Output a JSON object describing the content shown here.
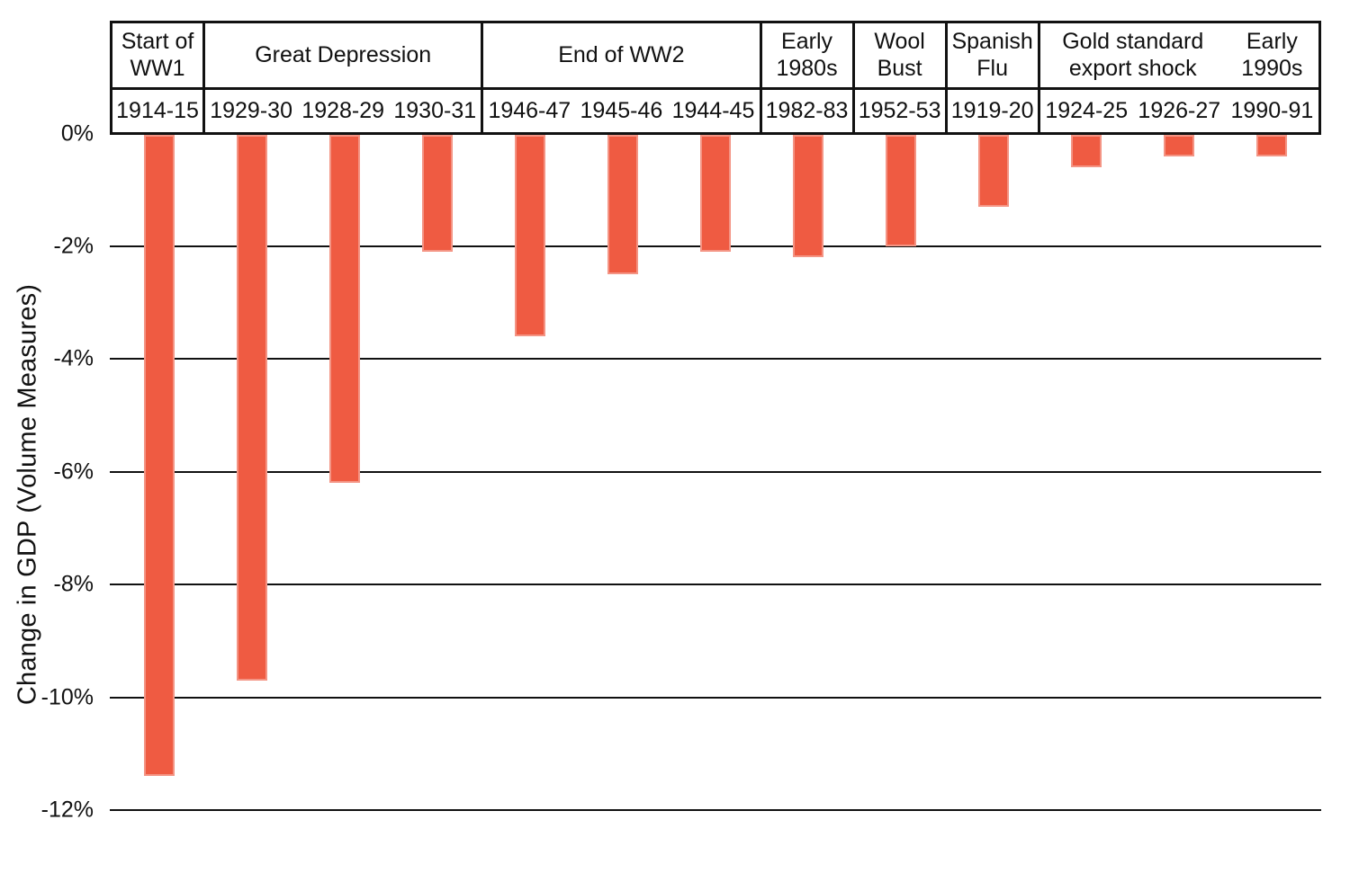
{
  "chart_data": {
    "type": "bar",
    "title": "",
    "xlabel": "",
    "ylabel": "Change in GDP (Volume Measures)",
    "unit": "%",
    "ylim": [
      -12,
      0
    ],
    "yticks": [
      0,
      -2,
      -4,
      -6,
      -8,
      -10,
      -12
    ],
    "ytick_labels": [
      "0%",
      "-2%",
      "-4%",
      "-6%",
      "-8%",
      "-10%",
      "-12%"
    ],
    "grid": true,
    "legend": false,
    "bar_color": "#EF5B42",
    "line_color": "#111111",
    "text_color": "#111111",
    "background_color": "#FFFFFF",
    "categories": [
      "1914-15",
      "1929-30",
      "1928-29",
      "1930-31",
      "1946-47",
      "1945-46",
      "1944-45",
      "1982-83",
      "1952-53",
      "1919-20",
      "1924-25",
      "1926-27",
      "1990-91"
    ],
    "values": [
      -11.4,
      -9.7,
      -6.2,
      -2.1,
      -3.6,
      -2.5,
      -2.1,
      -2.2,
      -2.0,
      -1.3,
      -0.6,
      -0.4,
      -0.4
    ]
  },
  "header": {
    "sections": [
      {
        "span": 1,
        "labels": [
          "Start of WW1"
        ],
        "label_spans": [
          1
        ]
      },
      {
        "span": 3,
        "labels": [
          "Great Depression"
        ],
        "label_spans": [
          3
        ]
      },
      {
        "span": 3,
        "labels": [
          "End of WW2"
        ],
        "label_spans": [
          3
        ]
      },
      {
        "span": 1,
        "labels": [
          "Early 1980s"
        ],
        "label_spans": [
          1
        ]
      },
      {
        "span": 1,
        "labels": [
          "Wool Bust"
        ],
        "label_spans": [
          1
        ]
      },
      {
        "span": 1,
        "labels": [
          "Spanish Flu"
        ],
        "label_spans": [
          1
        ]
      },
      {
        "span": 3,
        "labels": [
          "Gold standard export shock",
          "Early 1990s"
        ],
        "label_spans": [
          2,
          1
        ]
      }
    ]
  }
}
